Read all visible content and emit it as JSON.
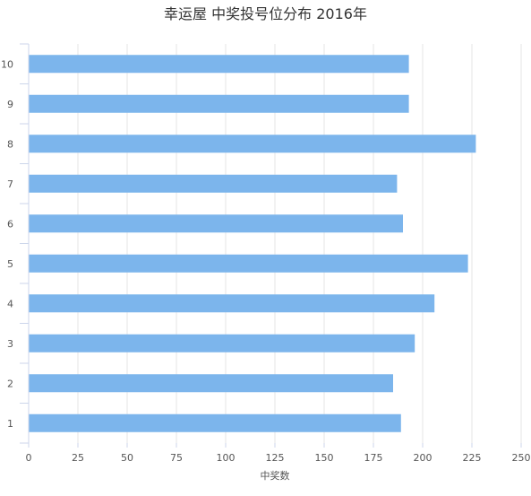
{
  "chart_data": {
    "type": "bar",
    "orientation": "horizontal",
    "title": "幸运屋 中奖投号位分布 2016年",
    "xlabel": "中奖数",
    "ylabel": "",
    "categories": [
      "1",
      "2",
      "3",
      "4",
      "5",
      "6",
      "7",
      "8",
      "9",
      "10"
    ],
    "values": [
      189,
      185,
      196,
      206,
      223,
      190,
      187,
      227,
      193,
      193
    ],
    "xlim": [
      0,
      250
    ],
    "xticks": [
      0,
      25,
      50,
      75,
      100,
      125,
      150,
      175,
      200,
      225,
      250
    ],
    "grid": true,
    "legend": "none",
    "colors": {
      "bar": "#7cb5ec",
      "grid": "#e6e6e6",
      "axis": "#ccd6eb",
      "text": "#555555",
      "title": "#333333"
    }
  }
}
